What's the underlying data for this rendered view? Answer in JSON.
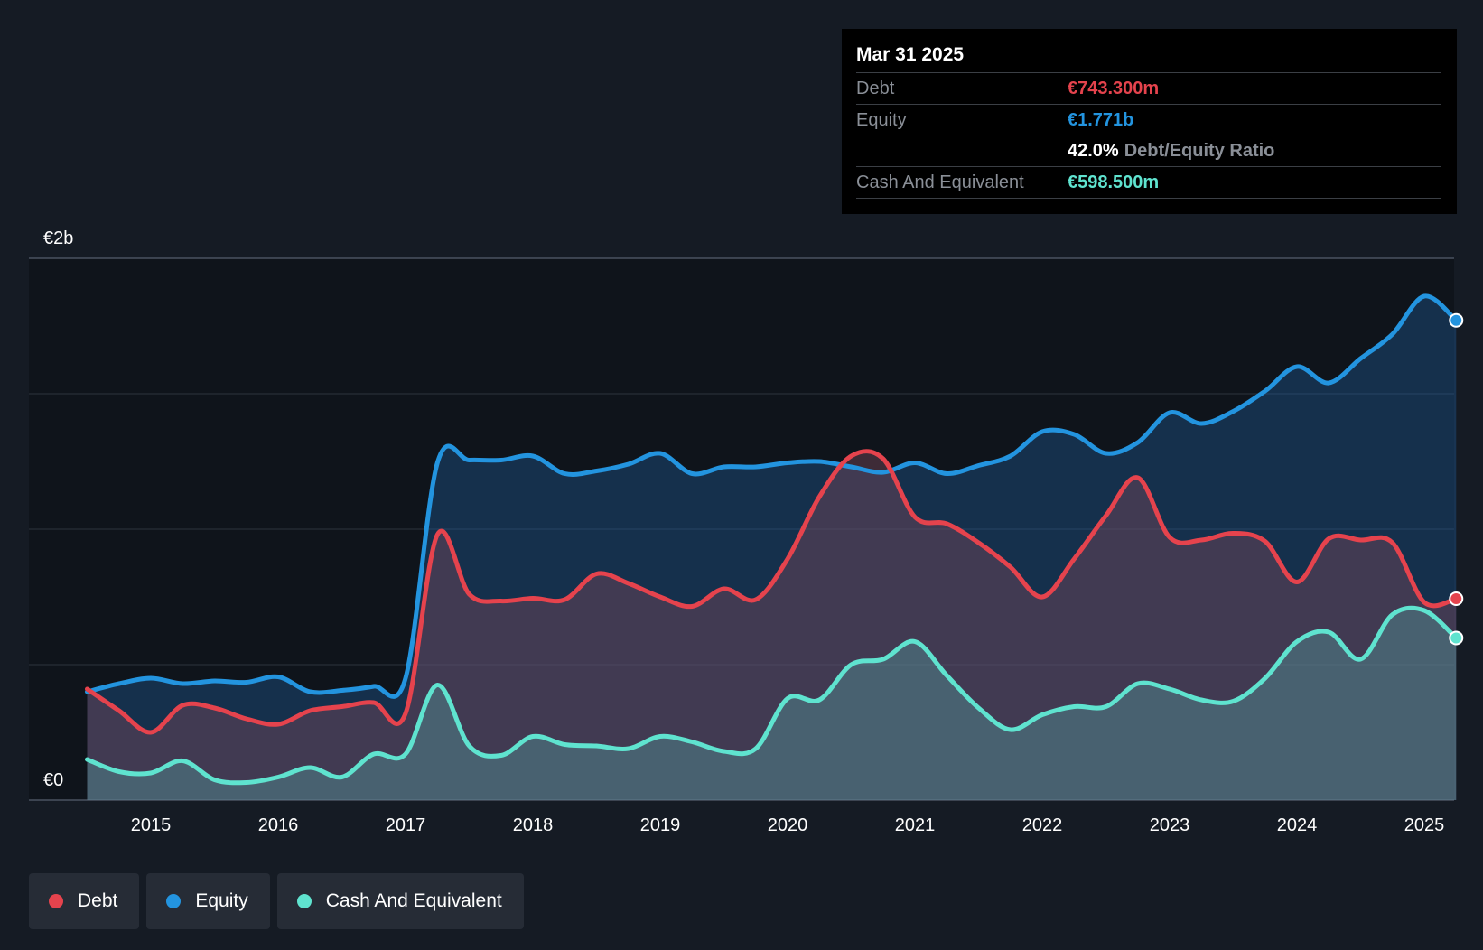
{
  "tooltip": {
    "date": "Mar 31 2025",
    "debt_label": "Debt",
    "debt_value": "€743.300m",
    "equity_label": "Equity",
    "equity_value": "€1.771b",
    "ratio_value": "42.0%",
    "ratio_label": "Debt/Equity Ratio",
    "cash_label": "Cash And Equivalent",
    "cash_value": "€598.500m"
  },
  "legend": [
    {
      "label": "Debt",
      "color": "#e5434d"
    },
    {
      "label": "Equity",
      "color": "#2394df"
    },
    {
      "label": "Cash And Equivalent",
      "color": "#5fe3cf"
    }
  ],
  "chart_data": {
    "type": "area",
    "currency_unit": "€m",
    "ylim": [
      0,
      2000
    ],
    "ytick_labels": [
      {
        "value": 0,
        "label": "€0"
      },
      {
        "value": 2000,
        "label": "€2b"
      }
    ],
    "gridlines": [
      0,
      500,
      1000,
      1500,
      2000
    ],
    "xlim": [
      2014.5,
      2025.25
    ],
    "xticks": [
      2015,
      2016,
      2017,
      2018,
      2019,
      2020,
      2021,
      2022,
      2023,
      2024,
      2025
    ],
    "series": [
      {
        "name": "Equity",
        "color": "#2394df",
        "points": [
          [
            2014.5,
            400
          ],
          [
            2014.75,
            430
          ],
          [
            2015.0,
            450
          ],
          [
            2015.25,
            430
          ],
          [
            2015.5,
            440
          ],
          [
            2015.75,
            435
          ],
          [
            2016.0,
            455
          ],
          [
            2016.25,
            400
          ],
          [
            2016.5,
            405
          ],
          [
            2016.75,
            420
          ],
          [
            2017.0,
            450
          ],
          [
            2017.25,
            1245
          ],
          [
            2017.5,
            1255
          ],
          [
            2017.75,
            1255
          ],
          [
            2018.0,
            1270
          ],
          [
            2018.25,
            1205
          ],
          [
            2018.5,
            1215
          ],
          [
            2018.75,
            1240
          ],
          [
            2019.0,
            1280
          ],
          [
            2019.25,
            1205
          ],
          [
            2019.5,
            1230
          ],
          [
            2019.75,
            1230
          ],
          [
            2020.0,
            1245
          ],
          [
            2020.25,
            1250
          ],
          [
            2020.5,
            1230
          ],
          [
            2020.75,
            1210
          ],
          [
            2021.0,
            1245
          ],
          [
            2021.25,
            1205
          ],
          [
            2021.5,
            1235
          ],
          [
            2021.75,
            1270
          ],
          [
            2022.0,
            1360
          ],
          [
            2022.25,
            1350
          ],
          [
            2022.5,
            1280
          ],
          [
            2022.75,
            1320
          ],
          [
            2023.0,
            1430
          ],
          [
            2023.25,
            1390
          ],
          [
            2023.5,
            1435
          ],
          [
            2023.75,
            1510
          ],
          [
            2024.0,
            1600
          ],
          [
            2024.25,
            1540
          ],
          [
            2024.5,
            1630
          ],
          [
            2024.75,
            1720
          ],
          [
            2025.0,
            1860
          ],
          [
            2025.25,
            1771
          ]
        ]
      },
      {
        "name": "Debt",
        "color": "#e5434d",
        "points": [
          [
            2014.5,
            410
          ],
          [
            2014.75,
            330
          ],
          [
            2015.0,
            250
          ],
          [
            2015.25,
            350
          ],
          [
            2015.5,
            340
          ],
          [
            2015.75,
            300
          ],
          [
            2016.0,
            280
          ],
          [
            2016.25,
            330
          ],
          [
            2016.5,
            345
          ],
          [
            2016.75,
            360
          ],
          [
            2017.0,
            320
          ],
          [
            2017.25,
            980
          ],
          [
            2017.5,
            760
          ],
          [
            2017.75,
            735
          ],
          [
            2018.0,
            745
          ],
          [
            2018.25,
            740
          ],
          [
            2018.5,
            835
          ],
          [
            2018.75,
            800
          ],
          [
            2019.0,
            750
          ],
          [
            2019.25,
            715
          ],
          [
            2019.5,
            780
          ],
          [
            2019.75,
            740
          ],
          [
            2020.0,
            890
          ],
          [
            2020.25,
            1120
          ],
          [
            2020.5,
            1270
          ],
          [
            2020.75,
            1260
          ],
          [
            2021.0,
            1045
          ],
          [
            2021.25,
            1020
          ],
          [
            2021.5,
            950
          ],
          [
            2021.75,
            860
          ],
          [
            2022.0,
            750
          ],
          [
            2022.25,
            890
          ],
          [
            2022.5,
            1050
          ],
          [
            2022.75,
            1190
          ],
          [
            2023.0,
            970
          ],
          [
            2023.25,
            960
          ],
          [
            2023.5,
            985
          ],
          [
            2023.75,
            955
          ],
          [
            2024.0,
            805
          ],
          [
            2024.25,
            965
          ],
          [
            2024.5,
            960
          ],
          [
            2024.75,
            950
          ],
          [
            2025.0,
            730
          ],
          [
            2025.25,
            743.3
          ]
        ]
      },
      {
        "name": "Cash And Equivalent",
        "color": "#5fe3cf",
        "points": [
          [
            2014.5,
            150
          ],
          [
            2014.75,
            105
          ],
          [
            2015.0,
            100
          ],
          [
            2015.25,
            145
          ],
          [
            2015.5,
            75
          ],
          [
            2015.75,
            65
          ],
          [
            2016.0,
            85
          ],
          [
            2016.25,
            120
          ],
          [
            2016.5,
            85
          ],
          [
            2016.75,
            170
          ],
          [
            2017.0,
            170
          ],
          [
            2017.25,
            425
          ],
          [
            2017.5,
            200
          ],
          [
            2017.75,
            165
          ],
          [
            2018.0,
            235
          ],
          [
            2018.25,
            205
          ],
          [
            2018.5,
            200
          ],
          [
            2018.75,
            190
          ],
          [
            2019.0,
            235
          ],
          [
            2019.25,
            215
          ],
          [
            2019.5,
            180
          ],
          [
            2019.75,
            190
          ],
          [
            2020.0,
            375
          ],
          [
            2020.25,
            370
          ],
          [
            2020.5,
            500
          ],
          [
            2020.75,
            520
          ],
          [
            2021.0,
            585
          ],
          [
            2021.25,
            460
          ],
          [
            2021.5,
            340
          ],
          [
            2021.75,
            260
          ],
          [
            2022.0,
            315
          ],
          [
            2022.25,
            345
          ],
          [
            2022.5,
            345
          ],
          [
            2022.75,
            430
          ],
          [
            2023.0,
            410
          ],
          [
            2023.25,
            370
          ],
          [
            2023.5,
            365
          ],
          [
            2023.75,
            450
          ],
          [
            2024.0,
            585
          ],
          [
            2024.25,
            620
          ],
          [
            2024.5,
            520
          ],
          [
            2024.75,
            685
          ],
          [
            2025.0,
            700
          ],
          [
            2025.25,
            598.5
          ]
        ]
      }
    ]
  }
}
